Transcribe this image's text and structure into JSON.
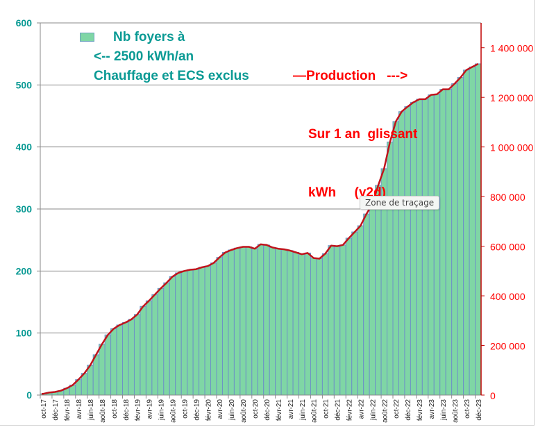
{
  "chart_data": {
    "type": "bar+line",
    "title": "",
    "x_tick_labels": [
      "oct-17",
      "déc-17",
      "févr-18",
      "avr-18",
      "juin-18",
      "août-18",
      "oct-18",
      "déc-18",
      "févr-19",
      "avr-19",
      "juin-19",
      "août-19",
      "oct-19",
      "déc-19",
      "févr-20",
      "avr-20",
      "juin-20",
      "août-20",
      "oct-20",
      "déc-20",
      "févr-21",
      "avr-21",
      "juin-21",
      "août-21",
      "oct-21",
      "déc-21",
      "févr-22",
      "avr-22",
      "juin-22",
      "août-22",
      "oct-22",
      "déc-22",
      "févr-23",
      "avr-23",
      "juin-23",
      "août-23",
      "oct-23",
      "déc-23"
    ],
    "x_range": "oct-17 to déc-23 (monthly, 75 months)",
    "left_axis": {
      "ylim": [
        0,
        600
      ],
      "ticks": [
        "0",
        "100",
        "200",
        "300",
        "400",
        "500",
        "600"
      ],
      "color": "#0a9a94"
    },
    "right_axis": {
      "ylim": [
        0,
        1500000
      ],
      "ticks": [
        "0",
        "200 000",
        "400 000",
        "600 000",
        "800 000",
        "1 000 000",
        "1 200 000",
        "1 400 000"
      ],
      "color": "#ff0000"
    },
    "grid": true,
    "series": [
      {
        "name": "Nb foyers à <-- 2500 kWh/an Chauffage et ECS exclus",
        "type": "bar",
        "axis": "left",
        "color": "#7fd6a5",
        "values": [
          2,
          4,
          5,
          7,
          11,
          16,
          25,
          35,
          48,
          65,
          82,
          97,
          107,
          113,
          117,
          122,
          130,
          143,
          152,
          162,
          172,
          181,
          191,
          197,
          200,
          202,
          203,
          206,
          208,
          213,
          222,
          230,
          234,
          237,
          239,
          239,
          236,
          243,
          242,
          238,
          236,
          235,
          233,
          230,
          227,
          229,
          221,
          220,
          228,
          241,
          240,
          242,
          253,
          263,
          273,
          292,
          308,
          338,
          365,
          408,
          441,
          457,
          465,
          472,
          477,
          477,
          484,
          485,
          493,
          493,
          502,
          512,
          524,
          529,
          534
        ]
      },
      {
        "name": "Production ---> Sur 1 an glissant kWh (y2d)",
        "type": "line",
        "axis": "right",
        "color": "#c0141c",
        "values": [
          5000,
          10000,
          12500,
          17500,
          27500,
          40000,
          62500,
          87500,
          120000,
          162500,
          205000,
          242500,
          267500,
          282500,
          292500,
          305000,
          325000,
          357500,
          380000,
          405000,
          430000,
          452500,
          477500,
          492500,
          500000,
          505000,
          507500,
          515000,
          520000,
          532500,
          555000,
          575000,
          585000,
          592500,
          597500,
          597500,
          590000,
          607500,
          605000,
          595000,
          590000,
          587500,
          582500,
          575000,
          567500,
          572500,
          552500,
          550000,
          570000,
          602500,
          600000,
          605000,
          632500,
          657500,
          682500,
          730000,
          770000,
          845000,
          912500,
          1020000,
          1102500,
          1142500,
          1162500,
          1180000,
          1192500,
          1192500,
          1210000,
          1212500,
          1232500,
          1232500,
          1255000,
          1280000,
          1310000,
          1322500,
          1335000
        ]
      }
    ],
    "legend": {
      "left_lines": [
        "Nb foyers à",
        "<-- 2500 kWh/an",
        "Chauffage et ECS exclus"
      ],
      "right_lines": [
        "—Production   --->",
        "Sur 1 an  glissant",
        "kWh     (y2d)"
      ],
      "placement": "top"
    }
  },
  "tooltip": "Zone de traçage"
}
